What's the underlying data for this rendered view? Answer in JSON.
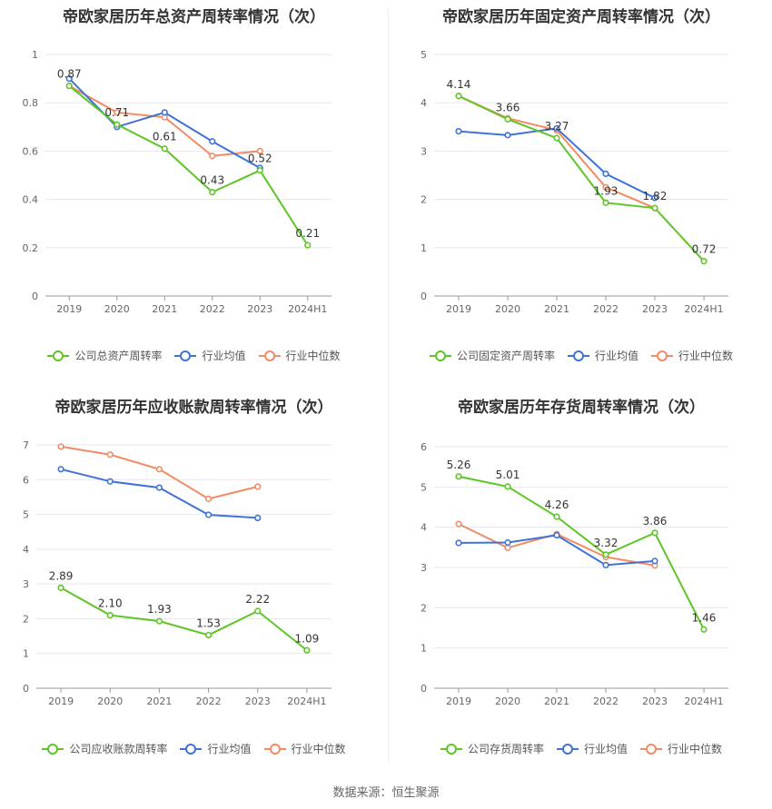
{
  "source_label": "数据来源：恒生聚源",
  "colors": {
    "company": "#5dc524",
    "avg": "#3f72d6",
    "median": "#f28a64"
  },
  "legend_names": {
    "avg": "行业均值",
    "median": "行业中位数"
  },
  "chart_data": [
    {
      "type": "line",
      "title": "帝欧家居历年总资产周转率情况（次）",
      "categories": [
        "2019",
        "2020",
        "2021",
        "2022",
        "2023",
        "2024H1"
      ],
      "ylim": [
        0,
        1
      ],
      "yticks": [
        "0",
        "0.2",
        "0.4",
        "0.6",
        "0.8",
        "1"
      ],
      "grid": true,
      "legend_position": "bottom",
      "series": [
        {
          "name": "公司总资产周转率",
          "key": "company",
          "values": [
            0.87,
            0.71,
            0.61,
            0.43,
            0.52,
            0.21
          ],
          "labels": [
            "0.87",
            "0.71",
            "0.61",
            "0.43",
            "0.52",
            "0.21"
          ]
        },
        {
          "name": "行业均值",
          "key": "avg",
          "values": [
            0.9,
            0.7,
            0.76,
            0.64,
            0.53,
            null
          ]
        },
        {
          "name": "行业中位数",
          "key": "median",
          "values": [
            0.87,
            0.76,
            0.74,
            0.58,
            0.6,
            null
          ]
        }
      ]
    },
    {
      "type": "line",
      "title": "帝欧家居历年固定资产周转率情况（次）",
      "categories": [
        "2019",
        "2020",
        "2021",
        "2022",
        "2023",
        "2024H1"
      ],
      "ylim": [
        0,
        5
      ],
      "yticks": [
        "0",
        "1",
        "2",
        "3",
        "4",
        "5"
      ],
      "grid": true,
      "legend_position": "bottom",
      "series": [
        {
          "name": "公司固定资产周转率",
          "key": "company",
          "values": [
            4.14,
            3.66,
            3.27,
            1.93,
            1.82,
            0.72
          ],
          "labels": [
            "4.14",
            "3.66",
            "3.27",
            "1.93",
            "1.82",
            "0.72"
          ]
        },
        {
          "name": "行业均值",
          "key": "avg",
          "values": [
            3.41,
            3.33,
            3.47,
            2.53,
            2.03,
            null
          ]
        },
        {
          "name": "行业中位数",
          "key": "median",
          "values": [
            4.14,
            3.68,
            3.43,
            2.25,
            1.82,
            null
          ]
        }
      ]
    },
    {
      "type": "line",
      "title": "帝欧家居历年应收账款周转率情况（次）",
      "categories": [
        "2019",
        "2020",
        "2021",
        "2022",
        "2023",
        "2024H1"
      ],
      "ylim": [
        0,
        7
      ],
      "yticks": [
        "0",
        "1",
        "2",
        "3",
        "4",
        "5",
        "6",
        "7"
      ],
      "grid": true,
      "legend_position": "bottom",
      "series": [
        {
          "name": "公司应收账款周转率",
          "key": "company",
          "values": [
            2.89,
            2.1,
            1.93,
            1.53,
            2.22,
            1.09
          ],
          "labels": [
            "2.89",
            "2.10",
            "1.93",
            "1.53",
            "2.22",
            "1.09"
          ]
        },
        {
          "name": "行业均值",
          "key": "avg",
          "values": [
            6.3,
            5.95,
            5.77,
            4.99,
            4.9,
            null
          ]
        },
        {
          "name": "行业中位数",
          "key": "median",
          "values": [
            6.95,
            6.72,
            6.3,
            5.45,
            5.8,
            null
          ]
        }
      ]
    },
    {
      "type": "line",
      "title": "帝欧家居历年存货周转率情况（次）",
      "categories": [
        "2019",
        "2020",
        "2021",
        "2022",
        "2023",
        "2024H1"
      ],
      "ylim": [
        0,
        6
      ],
      "yticks": [
        "0",
        "1",
        "2",
        "3",
        "4",
        "5",
        "6"
      ],
      "grid": true,
      "legend_position": "bottom",
      "series": [
        {
          "name": "公司存货周转率",
          "key": "company",
          "values": [
            5.26,
            5.01,
            4.26,
            3.32,
            3.86,
            1.46
          ],
          "labels": [
            "5.26",
            "5.01",
            "4.26",
            "3.32",
            "3.86",
            "1.46"
          ]
        },
        {
          "name": "行业均值",
          "key": "avg",
          "values": [
            3.61,
            3.62,
            3.8,
            3.06,
            3.16,
            null
          ]
        },
        {
          "name": "行业中位数",
          "key": "median",
          "values": [
            4.08,
            3.49,
            3.83,
            3.26,
            3.05,
            null
          ]
        }
      ]
    }
  ]
}
